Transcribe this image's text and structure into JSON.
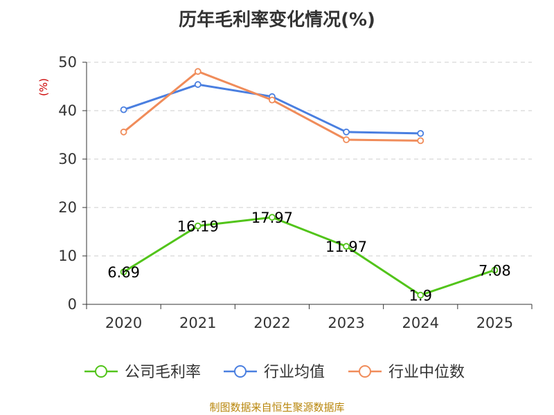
{
  "chart_data": {
    "type": "line",
    "title": "历年毛利率变化情况(%)",
    "ylabel": "(%)",
    "xlabel": "",
    "categories": [
      "2020",
      "2021",
      "2022",
      "2023",
      "2024",
      "2025"
    ],
    "ylim": [
      0,
      50
    ],
    "yticks": [
      0,
      10,
      20,
      30,
      40,
      50
    ],
    "grid": true,
    "legend_position": "bottom",
    "series": [
      {
        "name": "公司毛利率",
        "values": [
          6.69,
          16.19,
          17.97,
          11.97,
          1.9,
          7.08
        ],
        "labels": [
          "6.69",
          "16.19",
          "17.97",
          "11.97",
          "1.9",
          "7.08"
        ],
        "color": "#52c41a"
      },
      {
        "name": "行业均值",
        "values": [
          40.2,
          45.4,
          42.9,
          35.6,
          35.3,
          null
        ],
        "color": "#4a7fe0"
      },
      {
        "name": "行业中位数",
        "values": [
          35.6,
          48.1,
          42.2,
          34.0,
          33.8,
          null
        ],
        "color": "#f08c5a"
      }
    ]
  },
  "source_note": "制图数据来自恒生聚源数据库"
}
